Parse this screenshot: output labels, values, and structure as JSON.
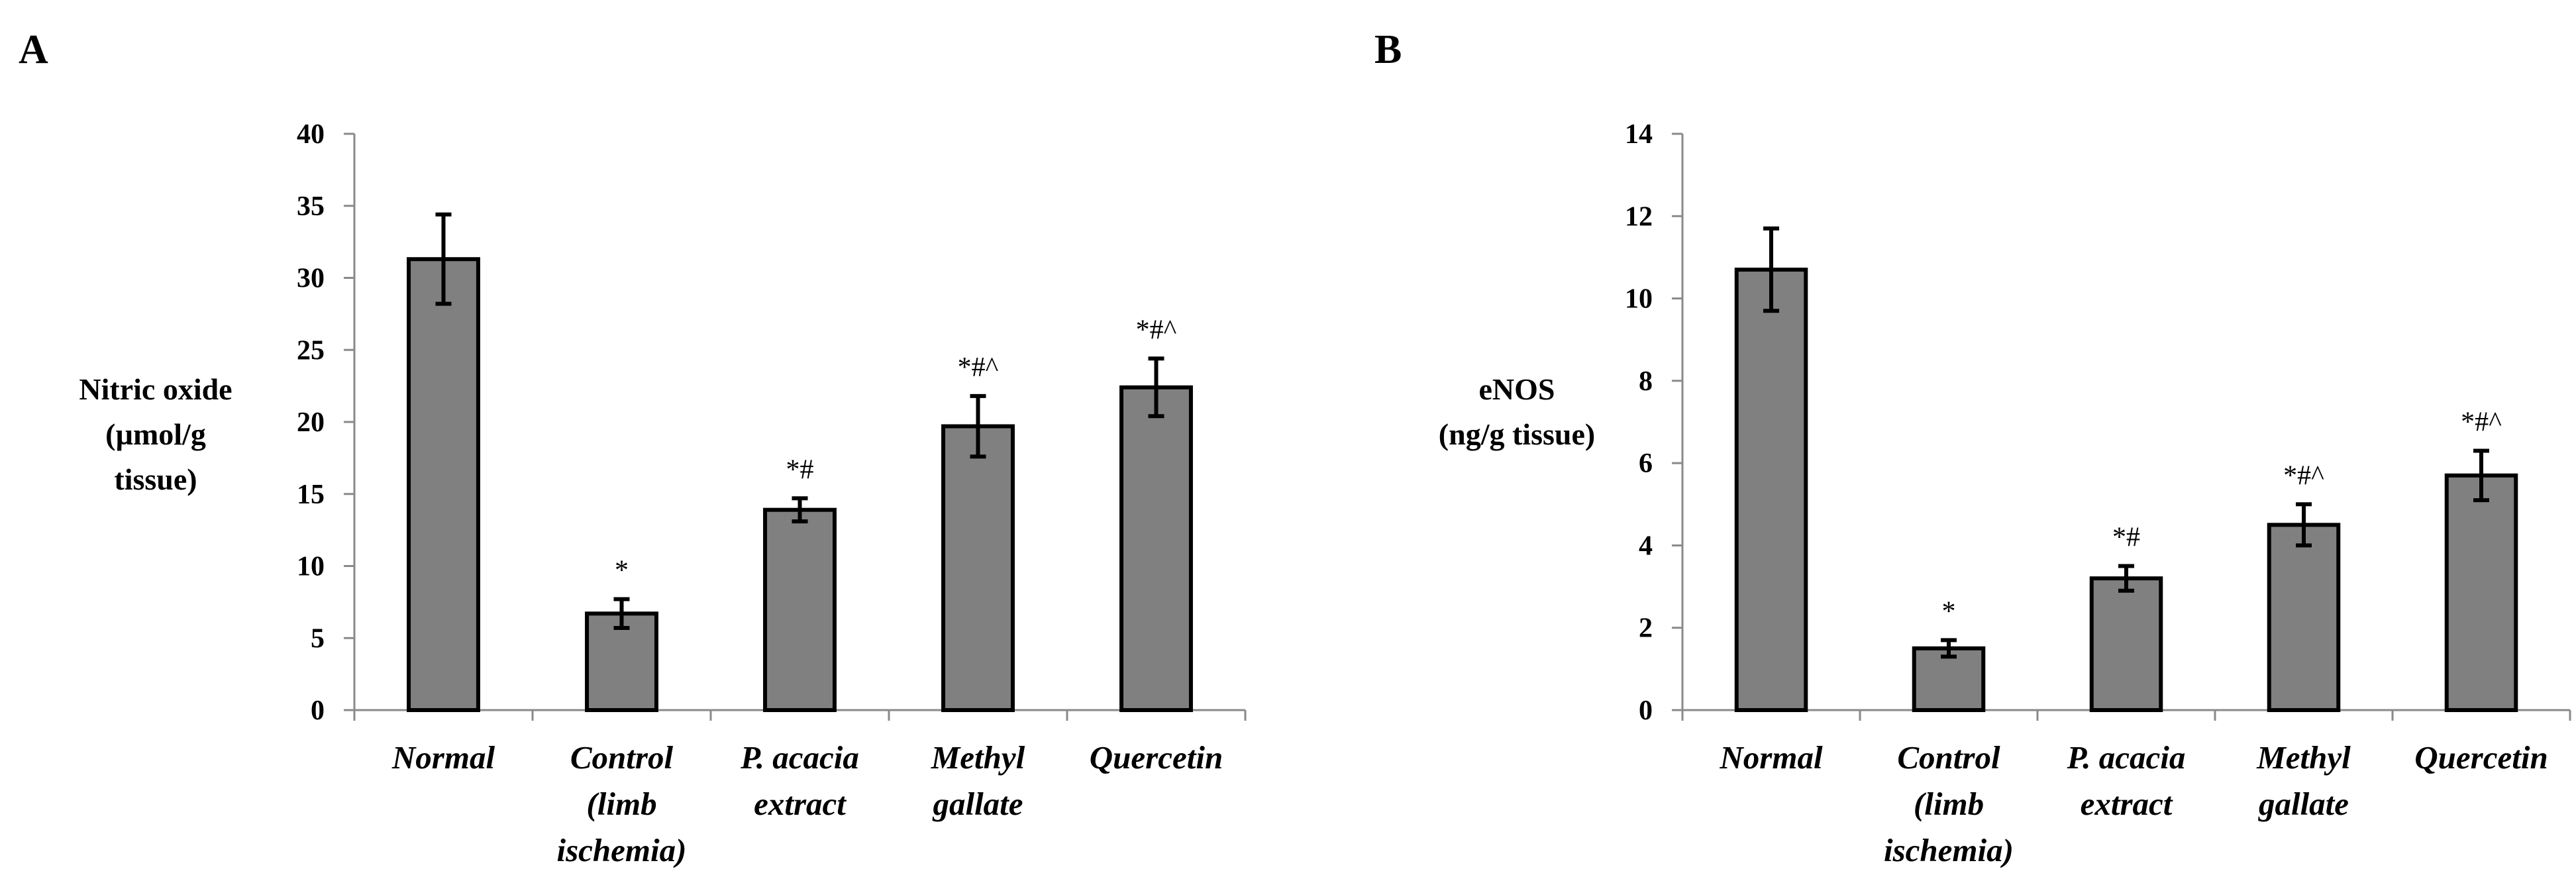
{
  "chart_data": [
    {
      "panel": "A",
      "type": "bar",
      "ylabel_lines": [
        "Nitric oxide",
        "(µmol/g",
        "tissue)"
      ],
      "ylim": [
        0,
        40
      ],
      "yticks": [
        0,
        5,
        10,
        15,
        20,
        25,
        30,
        35,
        40
      ],
      "categories": [
        [
          "Normal"
        ],
        [
          "Control",
          "(limb",
          "ischemia)"
        ],
        [
          "P. acacia",
          "extract"
        ],
        [
          "Methyl",
          "gallate"
        ],
        [
          "Quercetin"
        ]
      ],
      "values": [
        31.3,
        6.7,
        13.9,
        19.7,
        22.4
      ],
      "errors": [
        3.1,
        1.0,
        0.8,
        2.1,
        2.0
      ],
      "significance": [
        "",
        "*",
        "*#",
        "*#^",
        "*#^"
      ],
      "bar_color": "#808080"
    },
    {
      "panel": "B",
      "type": "bar",
      "ylabel_lines": [
        "eNOS",
        "(ng/g tissue)"
      ],
      "ylim": [
        0,
        14
      ],
      "yticks": [
        0,
        2,
        4,
        6,
        8,
        10,
        12,
        14
      ],
      "categories": [
        [
          "Normal"
        ],
        [
          "Control",
          "(limb",
          "ischemia)"
        ],
        [
          "P. acacia",
          "extract"
        ],
        [
          "Methyl",
          "gallate"
        ],
        [
          "Quercetin"
        ]
      ],
      "values": [
        10.7,
        1.5,
        3.2,
        4.5,
        5.7
      ],
      "errors": [
        1.0,
        0.2,
        0.3,
        0.5,
        0.6
      ],
      "significance": [
        "",
        "*",
        "*#",
        "*#^",
        "*#^"
      ],
      "bar_color": "#808080"
    }
  ]
}
